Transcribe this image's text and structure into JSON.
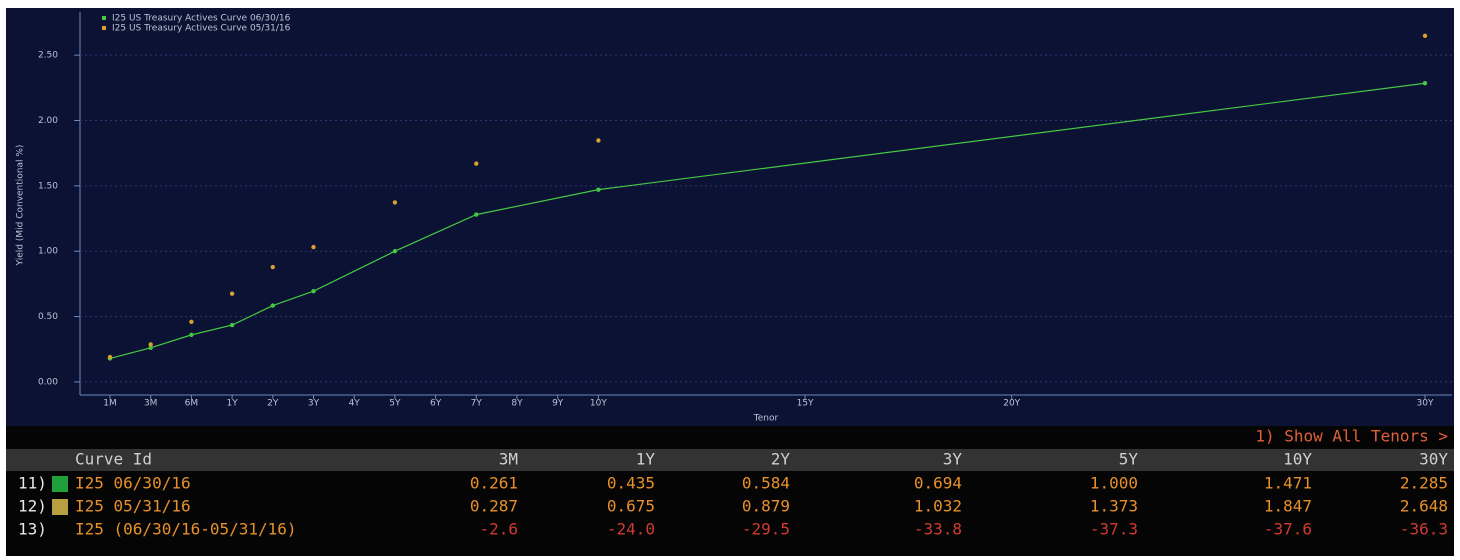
{
  "chart_data": {
    "type": "line",
    "x": [
      0.0833,
      0.25,
      0.5,
      1,
      2,
      3,
      5,
      7,
      10,
      30
    ],
    "series": [
      {
        "name": "I25 US Treasury Actives Curve 06/30/16",
        "color": "#45c845",
        "line": true,
        "values": [
          0.18,
          0.261,
          0.36,
          0.435,
          0.584,
          0.694,
          1.0,
          1.28,
          1.471,
          2.285
        ]
      },
      {
        "name": "I25 US Treasury Actives Curve 05/31/16",
        "color": "#d8a030",
        "line": false,
        "values": [
          0.19,
          0.287,
          0.46,
          0.675,
          0.879,
          1.032,
          1.373,
          1.67,
          1.847,
          2.648
        ]
      }
    ],
    "xlim": [
      0,
      30
    ],
    "xticks": [
      {
        "value": 0.0833,
        "label": "1M"
      },
      {
        "value": 0.25,
        "label": "3M"
      },
      {
        "value": 0.5,
        "label": "6M"
      },
      {
        "value": 1,
        "label": "1Y"
      },
      {
        "value": 2,
        "label": "2Y"
      },
      {
        "value": 3,
        "label": "3Y"
      },
      {
        "value": 4,
        "label": "4Y"
      },
      {
        "value": 5,
        "label": "5Y"
      },
      {
        "value": 6,
        "label": "6Y"
      },
      {
        "value": 7,
        "label": "7Y"
      },
      {
        "value": 8,
        "label": "8Y"
      },
      {
        "value": 9,
        "label": "9Y"
      },
      {
        "value": 10,
        "label": "10Y"
      },
      {
        "value": 15,
        "label": "15Y"
      },
      {
        "value": 20,
        "label": "20Y"
      },
      {
        "value": 30,
        "label": "30Y"
      }
    ],
    "ylim": [
      -0.1,
      2.83
    ],
    "yticks": [
      {
        "value": 0,
        "label": "0.00"
      },
      {
        "value": 0.5,
        "label": "0.50"
      },
      {
        "value": 1,
        "label": "1.00"
      },
      {
        "value": 1.5,
        "label": "1.50"
      },
      {
        "value": 2,
        "label": "2.00"
      },
      {
        "value": 2.5,
        "label": "2.50"
      }
    ],
    "ylabel": "Yield (Mid Conventional %)",
    "xlabel": "Tenor",
    "grid": true,
    "legend": "upper left"
  },
  "table": {
    "link": "1) Show All Tenors >",
    "header": [
      "Curve Id",
      "3M",
      "1Y",
      "2Y",
      "3Y",
      "5Y",
      "10Y",
      "30Y"
    ],
    "rows": [
      {
        "index": "11)",
        "cells": [
          "I25 06/30/16",
          "0.261",
          "0.435",
          "0.584",
          "0.694",
          "1.000",
          "1.471",
          "2.285"
        ]
      },
      {
        "index": "12)",
        "cells": [
          "I25 05/31/16",
          "0.287",
          "0.675",
          "0.879",
          "1.032",
          "1.373",
          "1.847",
          "2.648"
        ]
      },
      {
        "index": "13)",
        "cells": [
          "I25 (06/30/16-05/31/16)",
          "-2.6",
          "-24.0",
          "-29.5",
          "-33.8",
          "-37.3",
          "-37.6",
          "-36.3"
        ]
      }
    ]
  }
}
